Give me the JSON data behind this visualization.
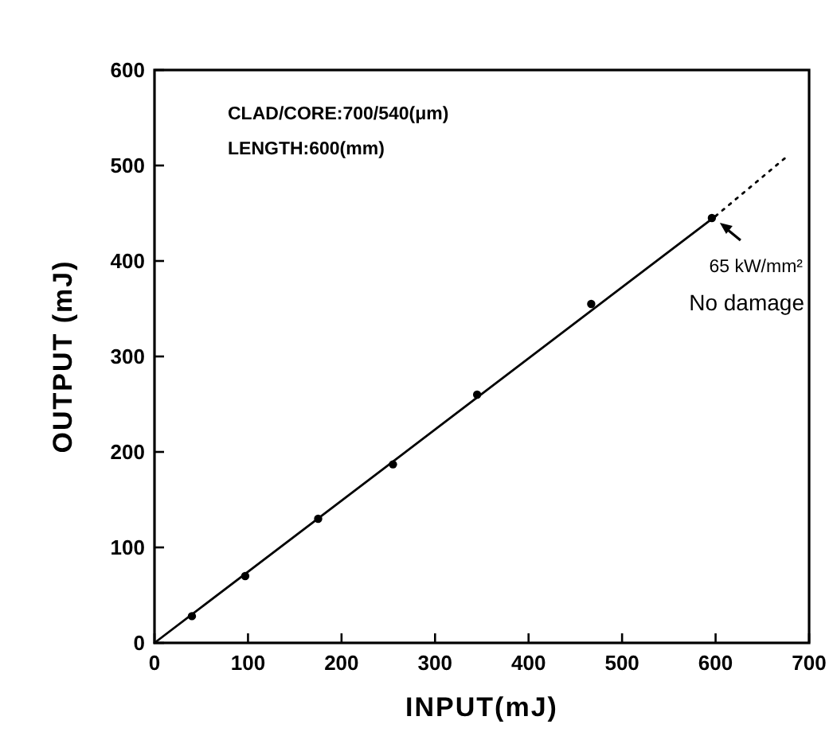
{
  "chart_data": {
    "type": "scatter",
    "xlabel": "INPUT(mJ)",
    "ylabel": "OUTPUT (mJ)",
    "xlim": [
      0,
      700
    ],
    "ylim": [
      0,
      600
    ],
    "xticks": [
      0,
      100,
      200,
      300,
      400,
      500,
      600,
      700
    ],
    "yticks": [
      0,
      100,
      200,
      300,
      400,
      500,
      600
    ],
    "grid": false,
    "marker": "circle",
    "series": [
      {
        "color": "#000000",
        "x": [
          40,
          97,
          175,
          255,
          345,
          467,
          596
        ],
        "values": [
          28,
          70,
          130,
          187,
          260,
          355,
          445
        ]
      },
      {
        "type": "line",
        "color": "#000000",
        "line_style": "solid",
        "marker": "none",
        "x": [
          0,
          600
        ],
        "values": [
          0,
          447
        ]
      },
      {
        "type": "line",
        "color": "#000000",
        "line_style": "dotted",
        "marker": "none",
        "x": [
          600,
          677
        ],
        "values": [
          447,
          510
        ]
      }
    ],
    "annotations": [
      "CLAD/CORE:700/540(μm)",
      "LENGTH:600(mm)",
      {
        "text": "65 kW/mm²",
        "x": 596,
        "y": 445
      },
      "No damage"
    ]
  }
}
